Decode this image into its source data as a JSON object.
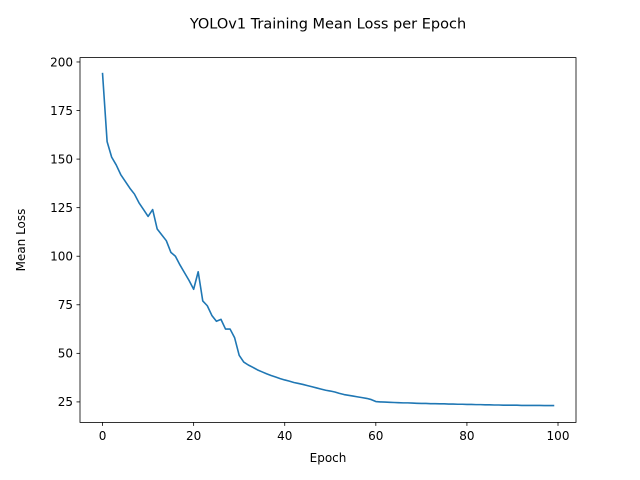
{
  "chart_data": {
    "type": "line",
    "title": "YOLOv1 Training Mean Loss per Epoch",
    "xlabel": "Epoch",
    "ylabel": "Mean Loss",
    "xlim": [
      -4.95,
      103.95
    ],
    "ylim": [
      14.45,
      202.25
    ],
    "xticks": [
      0,
      20,
      40,
      60,
      80,
      100
    ],
    "yticks": [
      25,
      50,
      75,
      100,
      125,
      150,
      175,
      200
    ],
    "grid": false,
    "legend": "none",
    "series": [
      {
        "color": "#1f77b4",
        "x": [
          0,
          1,
          2,
          3,
          4,
          5,
          6,
          7,
          8,
          9,
          10,
          11,
          12,
          13,
          14,
          15,
          16,
          17,
          18,
          19,
          20,
          21,
          22,
          23,
          24,
          25,
          26,
          27,
          28,
          29,
          30,
          31,
          32,
          33,
          34,
          35,
          36,
          37,
          38,
          39,
          40,
          41,
          42,
          43,
          44,
          45,
          46,
          47,
          48,
          49,
          50,
          51,
          52,
          53,
          54,
          55,
          56,
          57,
          58,
          59,
          60,
          61,
          62,
          63,
          64,
          65,
          66,
          67,
          68,
          69,
          70,
          71,
          72,
          73,
          74,
          75,
          76,
          77,
          78,
          79,
          80,
          81,
          82,
          83,
          84,
          85,
          86,
          87,
          88,
          89,
          90,
          91,
          92,
          93,
          94,
          95,
          96,
          97,
          98,
          99
        ],
        "values": [
          194,
          159,
          151,
          147,
          142,
          138.5,
          135,
          132,
          127.5,
          124,
          120.5,
          124,
          114,
          111,
          108,
          102,
          100,
          95.5,
          91.5,
          87.5,
          83,
          92,
          77,
          74.5,
          69.5,
          66.5,
          67.5,
          62.5,
          62.5,
          58,
          49,
          45.5,
          44,
          42.8,
          41.5,
          40.5,
          39.5,
          38.6,
          37.8,
          37,
          36.3,
          35.7,
          35,
          34.5,
          34,
          33.4,
          32.8,
          32.2,
          31.6,
          31,
          30.6,
          30.1,
          29.4,
          28.8,
          28.4,
          28,
          27.6,
          27.2,
          26.8,
          26.2,
          25.2,
          25,
          24.9,
          24.8,
          24.7,
          24.6,
          24.5,
          24.5,
          24.4,
          24.3,
          24.2,
          24.2,
          24.1,
          24.1,
          24,
          24,
          23.9,
          23.9,
          23.8,
          23.8,
          23.7,
          23.7,
          23.6,
          23.6,
          23.5,
          23.5,
          23.4,
          23.4,
          23.3,
          23.3,
          23.3,
          23.3,
          23.2,
          23.2,
          23.2,
          23.2,
          23.2,
          23.1,
          23.1,
          23.1
        ]
      }
    ]
  }
}
